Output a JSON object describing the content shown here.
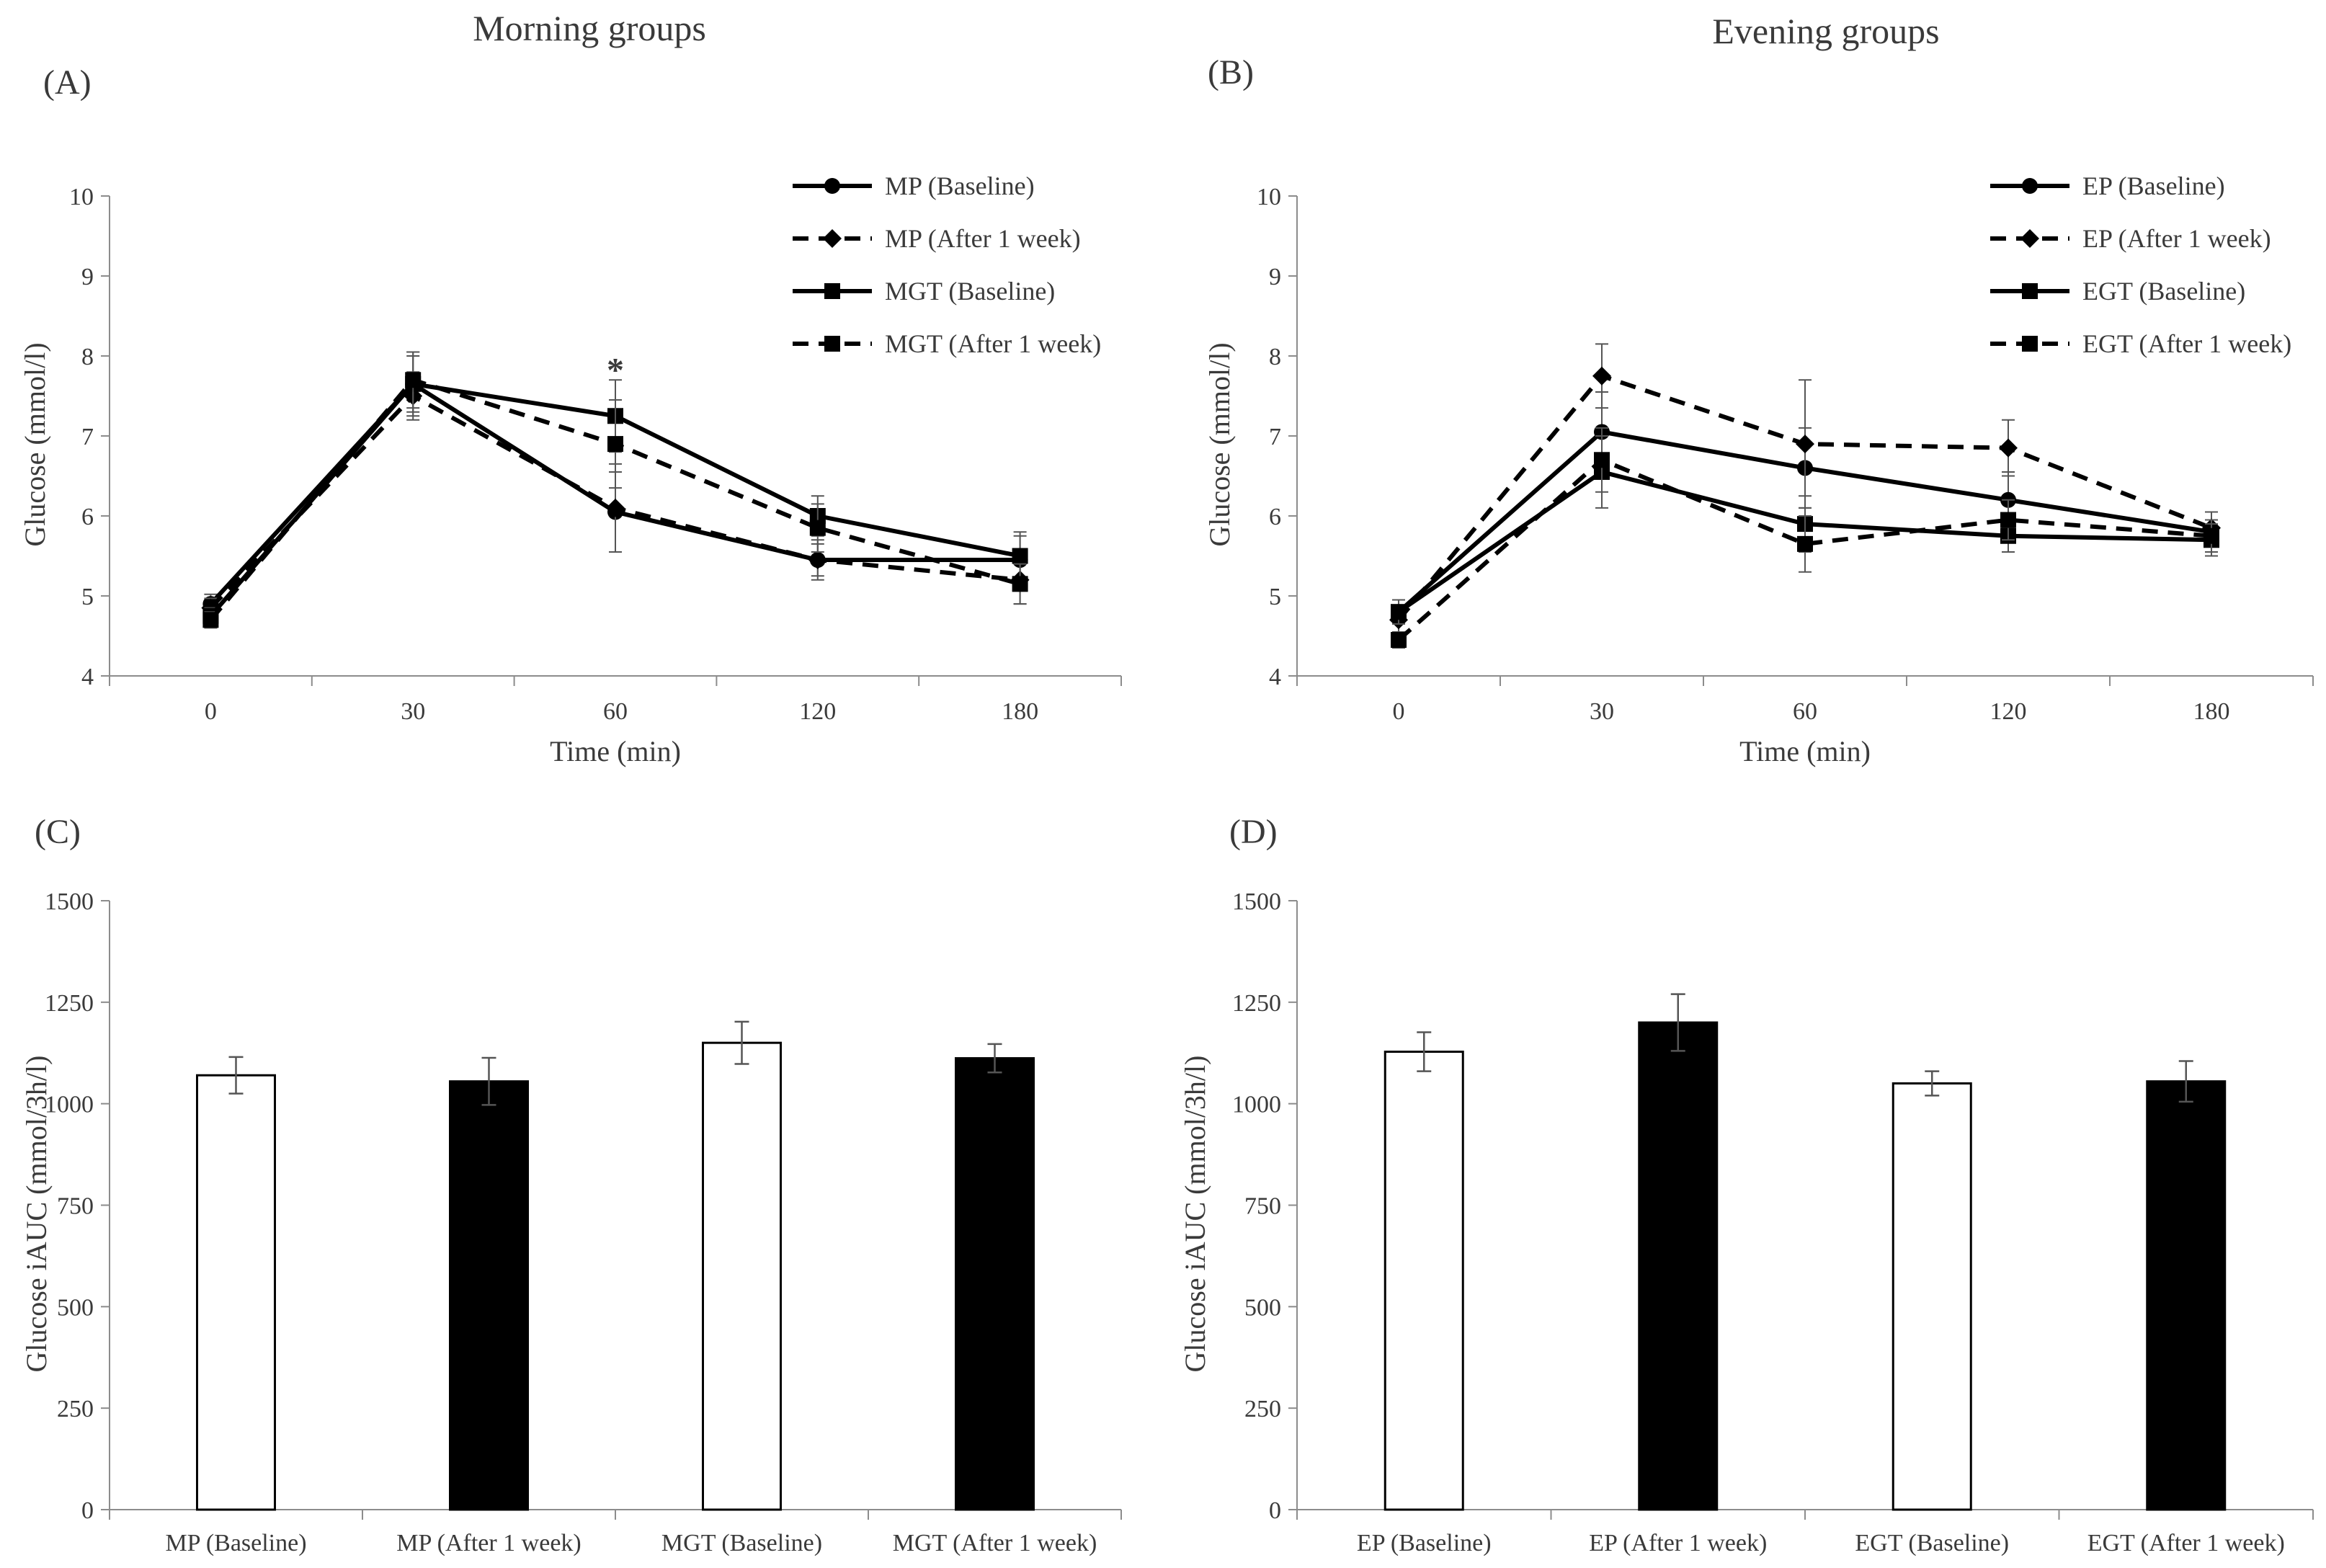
{
  "figure": {
    "col_titles": [
      "Morning groups",
      "Evening groups"
    ]
  },
  "chart_data": [
    {
      "id": "A",
      "panel_label": "(A)",
      "type": "line",
      "title": "",
      "xlabel": "Time (min)",
      "ylabel": "Glucose (mmol/l)",
      "categories": [
        "0",
        "30",
        "60",
        "120",
        "180"
      ],
      "ylim": [
        4,
        10
      ],
      "yticks": [
        4,
        5,
        6,
        7,
        8,
        9,
        10
      ],
      "legend": "top-right",
      "series": [
        {
          "name": "MP (Baseline)",
          "marker": "circle",
          "dashed": false,
          "values": [
            4.9,
            7.65,
            6.05,
            5.45,
            5.45
          ],
          "err": [
            0.12,
            0.35,
            0.5,
            0.25,
            0.3
          ]
        },
        {
          "name": "MP (After 1 week)",
          "marker": "diamond",
          "dashed": true,
          "values": [
            4.85,
            7.5,
            6.1,
            5.45,
            5.2
          ],
          "err": [
            0.12,
            0.3,
            0.55,
            0.2,
            0.3
          ]
        },
        {
          "name": "MGT (Baseline)",
          "marker": "square",
          "dashed": false,
          "values": [
            4.75,
            7.65,
            7.25,
            6.0,
            5.5
          ],
          "err": [
            0.1,
            0.4,
            0.45,
            0.25,
            0.3
          ]
        },
        {
          "name": "MGT (After 1 week)",
          "marker": "square",
          "dashed": true,
          "values": [
            4.7,
            7.7,
            6.9,
            5.85,
            5.15
          ],
          "err": [
            0.1,
            0.35,
            0.55,
            0.3,
            0.25
          ]
        }
      ],
      "annotations": [
        {
          "text": "*",
          "category": "60",
          "y": 7.95
        }
      ]
    },
    {
      "id": "B",
      "panel_label": "(B)",
      "type": "line",
      "title": "",
      "xlabel": "Time (min)",
      "ylabel": "Glucose (mmol/l)",
      "categories": [
        "0",
        "30",
        "60",
        "120",
        "180"
      ],
      "ylim": [
        4,
        10
      ],
      "yticks": [
        4,
        5,
        6,
        7,
        8,
        9,
        10
      ],
      "legend": "top-right",
      "series": [
        {
          "name": "EP (Baseline)",
          "marker": "circle",
          "dashed": false,
          "values": [
            4.8,
            7.05,
            6.6,
            6.2,
            5.8
          ],
          "err": [
            0.15,
            0.5,
            0.5,
            0.35,
            0.25
          ]
        },
        {
          "name": "EP (After 1 week)",
          "marker": "diamond",
          "dashed": true,
          "values": [
            4.7,
            7.75,
            6.9,
            6.85,
            5.85
          ],
          "err": [
            0.15,
            0.4,
            0.8,
            0.35,
            0.2
          ]
        },
        {
          "name": "EGT (Baseline)",
          "marker": "square",
          "dashed": false,
          "values": [
            4.8,
            6.55,
            5.9,
            5.75,
            5.7
          ],
          "err": [
            0.15,
            0.45,
            0.35,
            0.2,
            0.2
          ]
        },
        {
          "name": "EGT (After 1 week)",
          "marker": "square",
          "dashed": true,
          "values": [
            4.45,
            6.7,
            5.65,
            5.95,
            5.75
          ],
          "err": [
            0.1,
            0.4,
            0.35,
            0.25,
            0.2
          ]
        }
      ],
      "annotations": []
    },
    {
      "id": "C",
      "panel_label": "(C)",
      "type": "bar",
      "title": "",
      "xlabel": "",
      "ylabel": "Glucose iAUC (mmol/3h/l)",
      "categories": [
        "MP (Baseline)",
        "MP (After 1 week)",
        "MGT (Baseline)",
        "MGT (After 1 week)"
      ],
      "values": [
        1070,
        1055,
        1150,
        1112
      ],
      "err": [
        45,
        58,
        52,
        35
      ],
      "fills": [
        "#ffffff",
        "#000000",
        "#ffffff",
        "#000000"
      ],
      "ylim": [
        0,
        1500
      ],
      "yticks": [
        0,
        250,
        500,
        750,
        1000,
        1250,
        1500
      ]
    },
    {
      "id": "D",
      "panel_label": "(D)",
      "type": "bar",
      "title": "",
      "xlabel": "",
      "ylabel": "Glucose iAUC (mmol/3h/l)",
      "categories": [
        "EP (Baseline)",
        "EP (After 1 week)",
        "EGT (Baseline)",
        "EGT (After 1 week)"
      ],
      "values": [
        1128,
        1200,
        1050,
        1055
      ],
      "err": [
        48,
        70,
        30,
        50
      ],
      "fills": [
        "#ffffff",
        "#000000",
        "#ffffff",
        "#000000"
      ],
      "ylim": [
        0,
        1500
      ],
      "yticks": [
        0,
        250,
        500,
        750,
        1000,
        1250,
        1500
      ]
    }
  ]
}
